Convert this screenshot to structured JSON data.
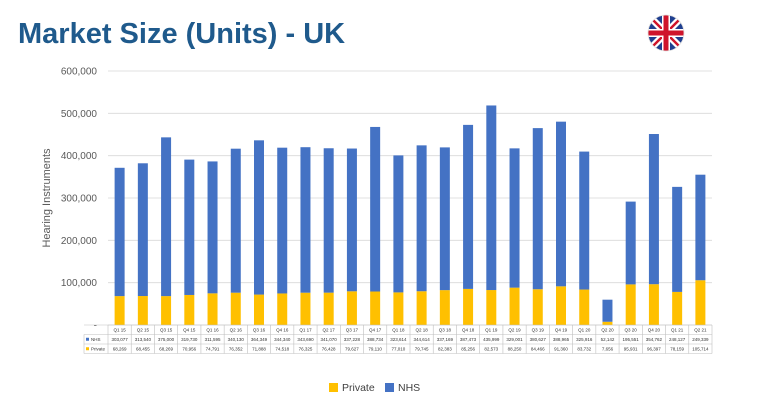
{
  "page": {
    "title": "Market Size (Units) - UK"
  },
  "chart_data": {
    "type": "bar",
    "stacked": true,
    "title": "Market Size (Units) - UK",
    "ylabel": "Hearing Instruments",
    "xlabel": "",
    "ylim": [
      0,
      600000
    ],
    "yticks": [
      "-",
      "100,000",
      "200,000",
      "300,000",
      "400,000",
      "500,000",
      "600,000"
    ],
    "grid": true,
    "legend": "bottom",
    "categories": [
      "Q1 15",
      "Q2 15",
      "Q3 15",
      "Q4 15",
      "Q1 16",
      "Q2 16",
      "Q3 16",
      "Q4 16",
      "Q1 17",
      "Q2 17",
      "Q3 17",
      "Q4 17",
      "Q1 18",
      "Q2 18",
      "Q3 18",
      "Q4 18",
      "Q1 19",
      "Q2 19",
      "Q3 19",
      "Q4 19",
      "Q1 20",
      "Q2 20",
      "Q3 20",
      "Q4 20",
      "Q1 21",
      "Q2 21"
    ],
    "series": [
      {
        "name": "Private",
        "color": "#ffc000",
        "values": [
          68269,
          68455,
          68269,
          70956,
          74791,
          76352,
          71888,
          74518,
          76325,
          76428,
          79627,
          79110,
          77010,
          79745,
          82383,
          85256,
          82573,
          88250,
          84466,
          91360,
          83732,
          7656,
          95931,
          96397,
          78159,
          105714
        ],
        "labels": [
          "68,269",
          "68,455",
          "68,269",
          "70,956",
          "74,791",
          "76,352",
          "71,888",
          "74,518",
          "76,325",
          "76,428",
          "79,627",
          "79,110",
          "77,010",
          "79,745",
          "82,383",
          "85,256",
          "82,573",
          "88,250",
          "84,466",
          "91,360",
          "83,732",
          "7,656",
          "95,931",
          "96,397",
          "78,159",
          "105,714"
        ]
      },
      {
        "name": "NHS",
        "color": "#4472c4",
        "values": [
          303077,
          313540,
          375000,
          319730,
          311595,
          340130,
          364349,
          344340,
          343690,
          341070,
          337228,
          388734,
          323614,
          344614,
          337169,
          387473,
          435999,
          329001,
          380627,
          388965,
          325916,
          52142,
          195551,
          354762,
          248127,
          249339
        ],
        "labels": [
          "303,077",
          "313,540",
          "375,000",
          "319,730",
          "311,595",
          "340,130",
          "364,349",
          "344,340",
          "343,690",
          "341,070",
          "337,228",
          "388,734",
          "323,614",
          "344,614",
          "337,169",
          "387,473",
          "435,999",
          "329,001",
          "380,627",
          "388,965",
          "325,916",
          "52,142",
          "195,551",
          "354,762",
          "248,127",
          "249,339"
        ]
      }
    ]
  }
}
